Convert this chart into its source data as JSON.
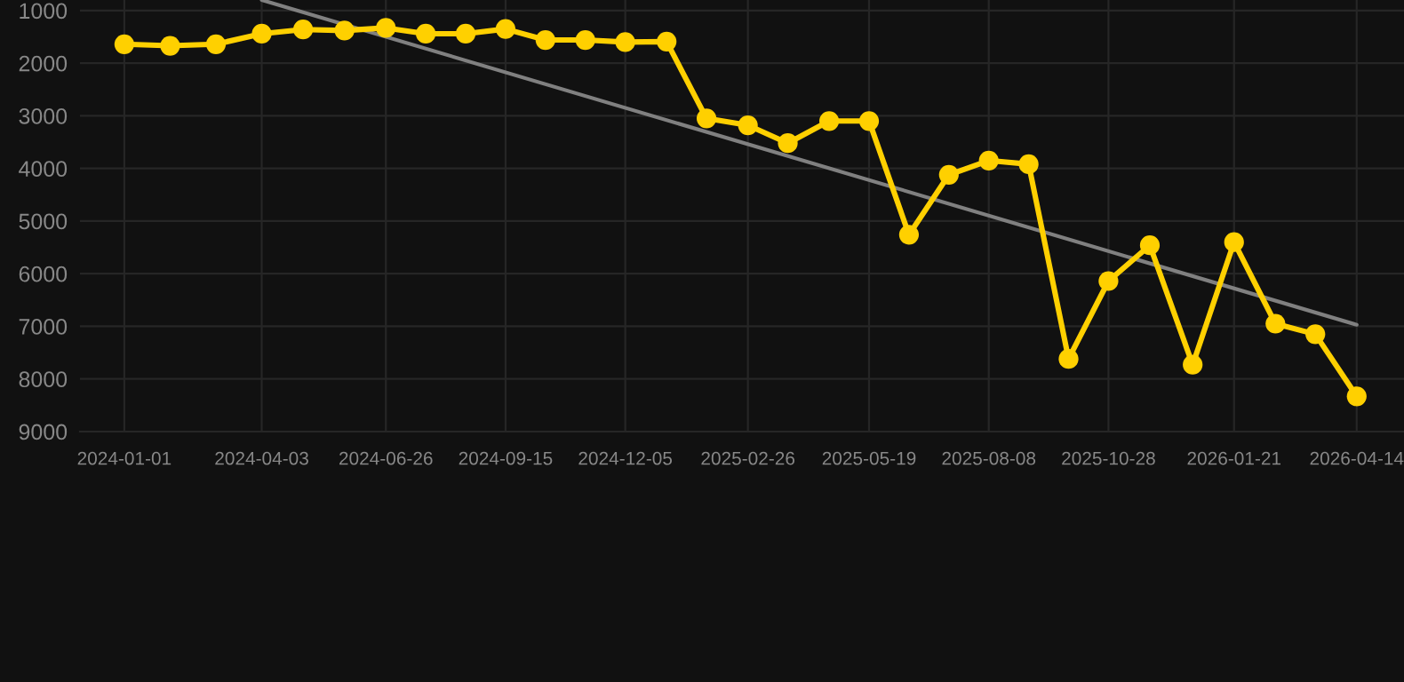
{
  "chart_data": {
    "type": "line",
    "x": [
      "2024-01-01",
      "2024-02-01",
      "2024-03-03",
      "2024-04-03",
      "2024-05-01",
      "2024-05-29",
      "2024-06-26",
      "2024-07-23",
      "2024-08-19",
      "2024-09-15",
      "2024-10-12",
      "2024-11-08",
      "2024-12-05",
      "2025-01-02",
      "2025-01-29",
      "2025-02-26",
      "2025-03-25",
      "2025-04-22",
      "2025-05-19",
      "2025-06-15",
      "2025-07-12",
      "2025-08-08",
      "2025-09-04",
      "2025-10-01",
      "2025-10-28",
      "2025-11-25",
      "2025-12-24",
      "2026-01-21",
      "2026-02-18",
      "2026-03-17",
      "2026-04-14"
    ],
    "series": [
      {
        "color": "#ffd000",
        "values": [
          1640,
          1670,
          1640,
          1440,
          1360,
          1380,
          1330,
          1440,
          1440,
          1350,
          1560,
          1560,
          1600,
          1590,
          3050,
          3180,
          3520,
          3100,
          3100,
          5260,
          4120,
          3850,
          3920,
          7620,
          6140,
          5460,
          7730,
          5400,
          6950,
          7150,
          8330
        ]
      },
      {
        "type": "line",
        "color": "#808080",
        "marker": "none",
        "x": [
          "2024-04-03",
          "2026-04-14"
        ],
        "values": [
          800,
          6970
        ]
      }
    ],
    "marker": "circle",
    "line_style": "solid",
    "grid": true,
    "legend": false,
    "xlim": [
      "2023-12-02",
      "2026-05-16"
    ],
    "xticks": [
      "2024-01-01",
      "2024-04-03",
      "2024-06-26",
      "2024-09-15",
      "2024-12-05",
      "2025-02-26",
      "2025-05-19",
      "2025-08-08",
      "2025-10-28",
      "2026-01-21",
      "2026-04-14"
    ],
    "ylim": [
      9000,
      800
    ],
    "yticks": [
      1000,
      2000,
      3000,
      4000,
      5000,
      6000,
      7000,
      8000,
      9000
    ]
  }
}
